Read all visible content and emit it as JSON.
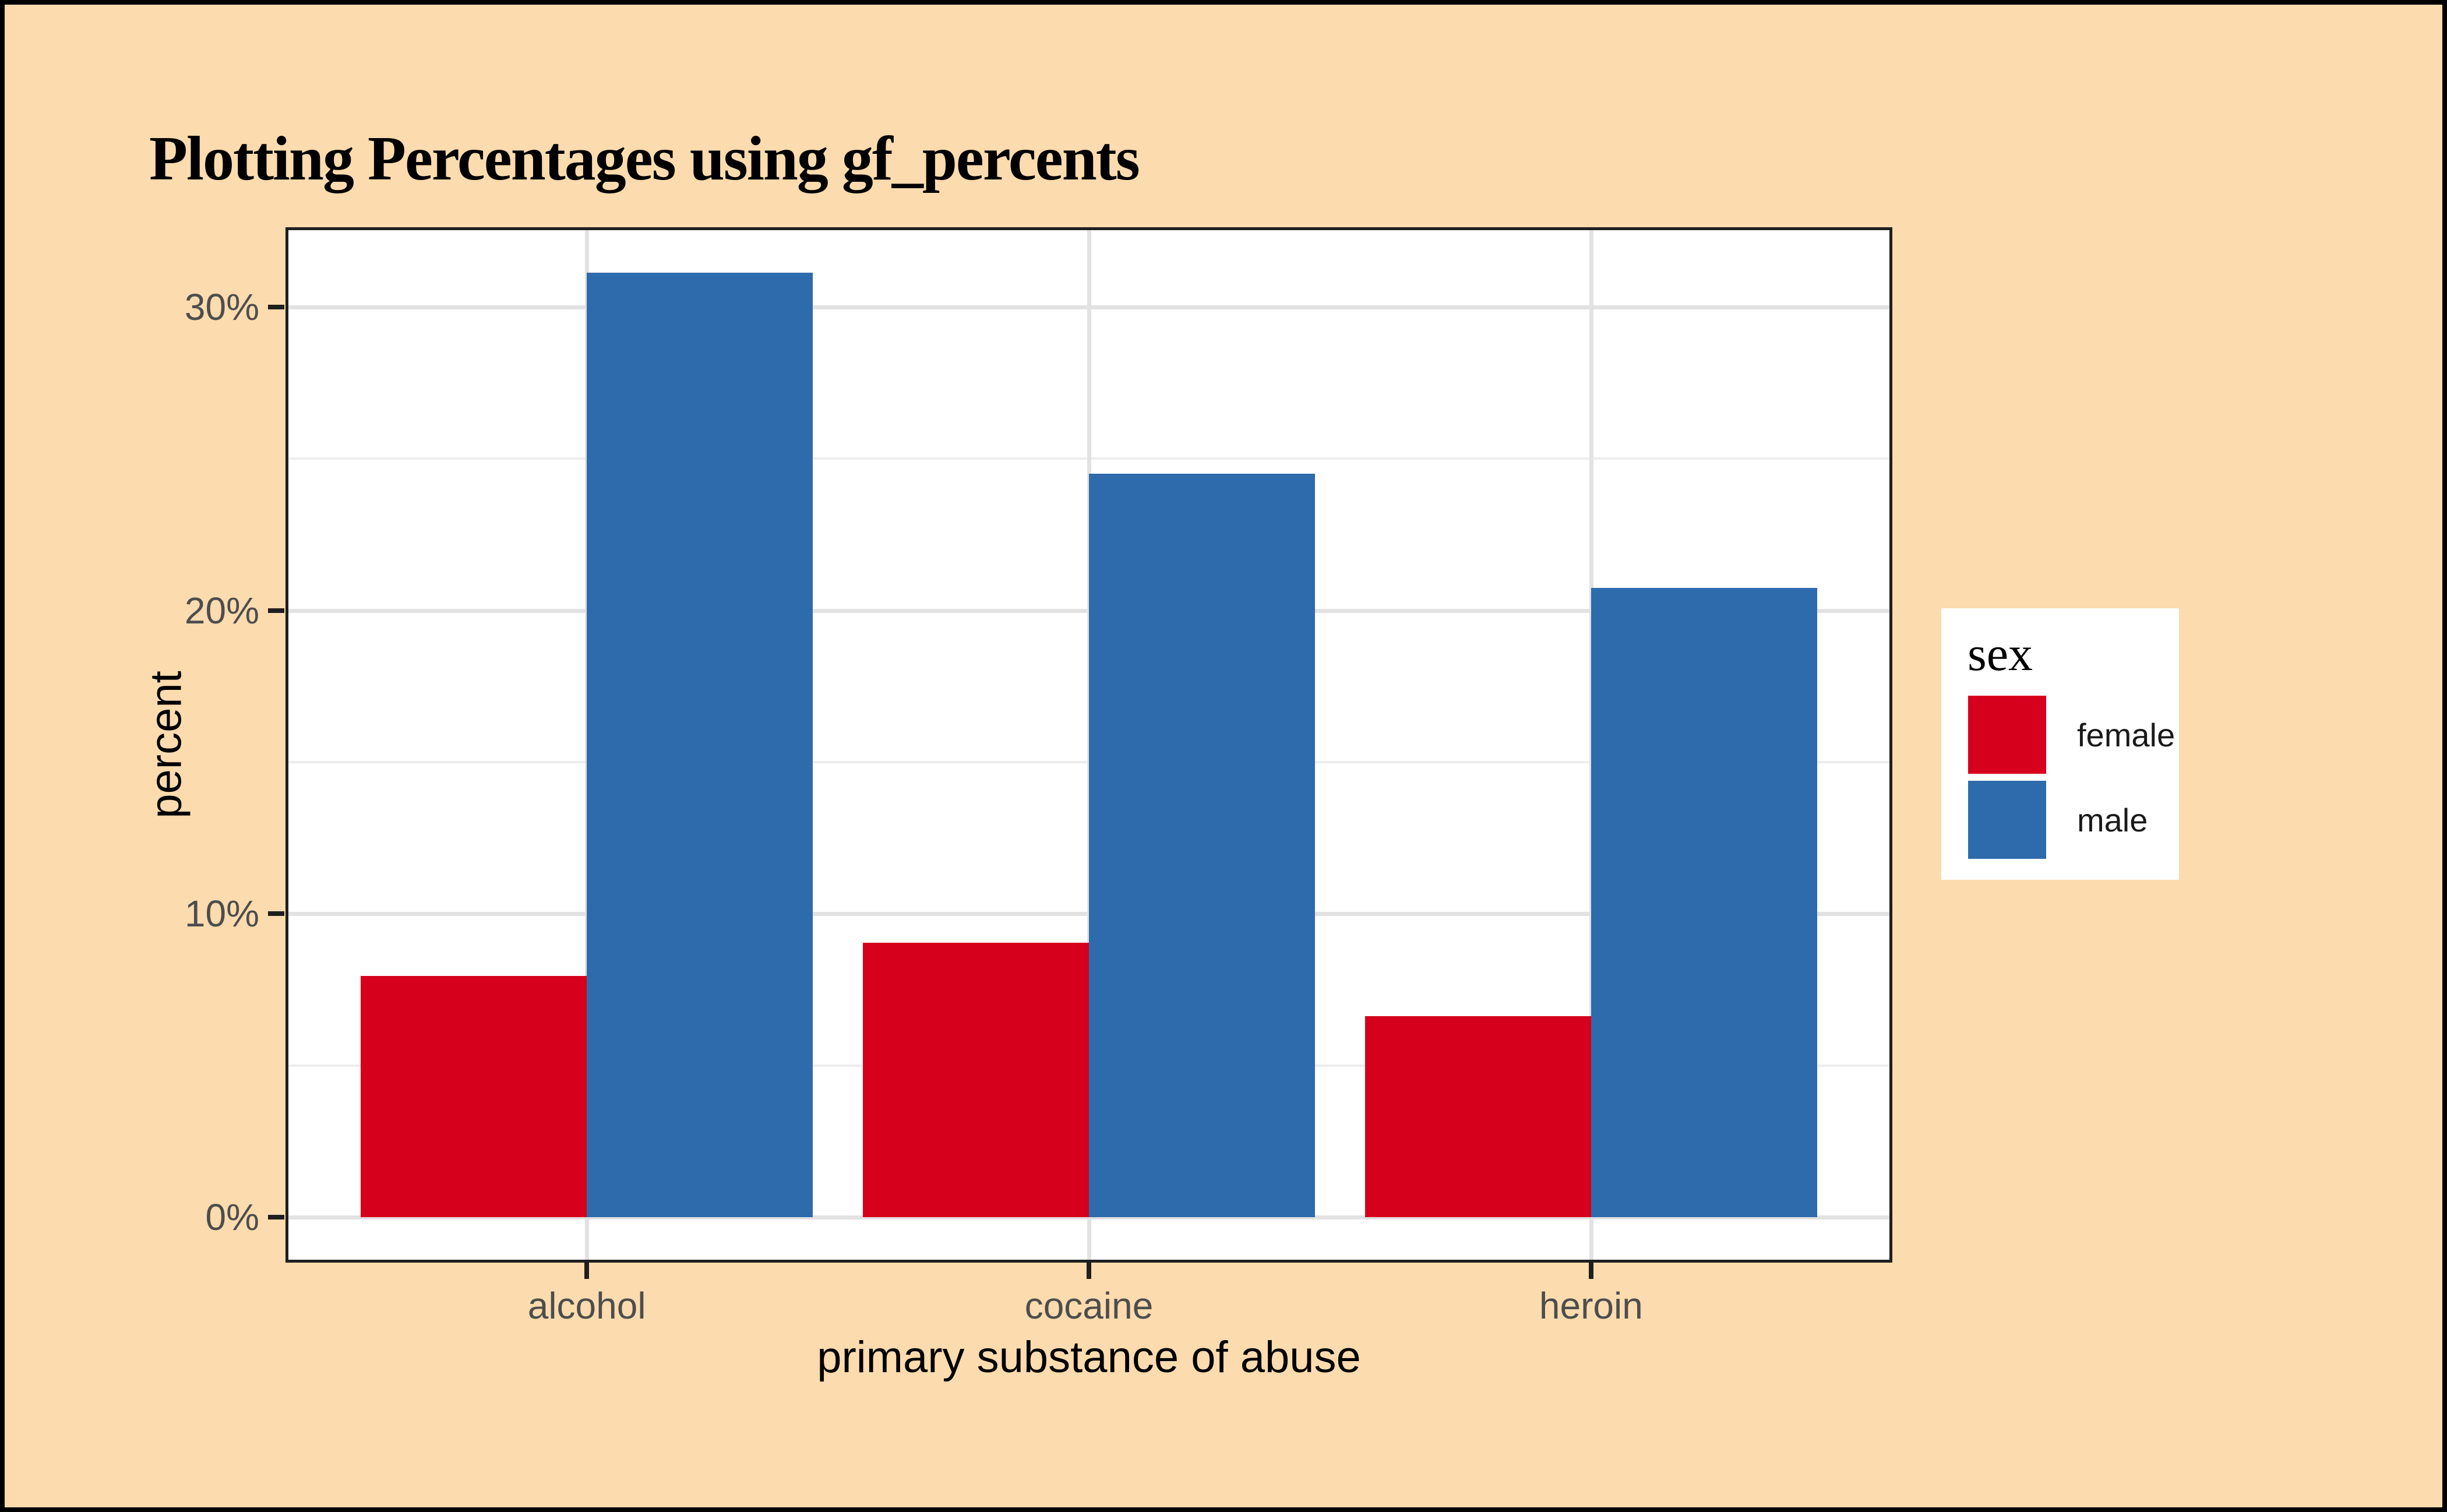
{
  "title": "Plotting Percentages using gf_percents",
  "chart_data": {
    "type": "bar",
    "title": "Plotting Percentages using gf_percents",
    "categories": [
      "alcohol",
      "cocaine",
      "heroin"
    ],
    "series": [
      {
        "name": "female",
        "values": [
          7.95,
          9.05,
          6.62
        ]
      },
      {
        "name": "male",
        "values": [
          31.13,
          24.5,
          20.75
        ]
      }
    ],
    "xlabel": "primary substance of abuse",
    "ylabel": "percent",
    "ylim": [
      -1.56,
      32.7
    ],
    "yticks": [
      0,
      10,
      20,
      30
    ],
    "ytick_labels": [
      "0%",
      "10%",
      "20%",
      "30%"
    ],
    "yticks_minor": [
      5,
      15,
      25
    ],
    "grid": "on",
    "legend_title": "sex",
    "legend_position": "right",
    "bar_grouping": "dodge"
  },
  "legend": {
    "title": "sex",
    "items": [
      {
        "label": "female",
        "color": "#d7001c"
      },
      {
        "label": "male",
        "color": "#2e6bac"
      }
    ]
  },
  "colors": {
    "background": "#fcdbae",
    "panel": "#ffffff",
    "outer_border": "#000000",
    "panel_border": "#1f1f1f",
    "grid_major": "#e2e2e2",
    "grid_minor": "#ededed",
    "tick_mark": "#1f1f1f",
    "tick_label": "#4d4d4d",
    "female": "#d7001c",
    "male": "#2e6bac"
  }
}
